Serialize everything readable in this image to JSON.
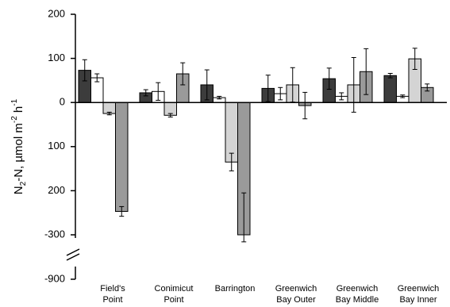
{
  "chart_data": {
    "type": "bar",
    "y_label": {
      "parts": [
        "N",
        "2",
        "-N, µmol m",
        "-2",
        " h",
        "-1"
      ]
    },
    "categories": [
      [
        "Field's",
        "Point"
      ],
      [
        "Conimicut",
        "Point"
      ],
      [
        "Barrington"
      ],
      [
        "Greenwich",
        "Bay Outer"
      ],
      [
        "Greenwich",
        "Bay Middle"
      ],
      [
        "Greenwich",
        "Bay Inner"
      ]
    ],
    "series": [
      {
        "color": "#3c3c3c",
        "values": [
          73,
          22,
          40,
          32,
          54,
          61
        ],
        "errors": [
          24,
          7,
          34,
          30,
          24,
          5
        ]
      },
      {
        "color": "#ffffff",
        "values": [
          56,
          25,
          11,
          20,
          14,
          14
        ],
        "errors": [
          9,
          20,
          3,
          14,
          8,
          3
        ]
      },
      {
        "color": "#d4d4d4",
        "values": [
          -25,
          -29,
          -135,
          40,
          40,
          99
        ],
        "errors": [
          3,
          4,
          20,
          39,
          62,
          24
        ]
      },
      {
        "color": "#9a9a9a",
        "values": [
          -247,
          65,
          -300,
          -7,
          70,
          34
        ],
        "errors": [
          11,
          25,
          95,
          30,
          52,
          8
        ]
      }
    ],
    "ylim": [
      -900,
      200
    ],
    "y_break": [
      -900,
      -300
    ],
    "yticks": [
      200,
      100,
      0,
      {
        "value": -100,
        "label": "100"
      },
      {
        "value": -200,
        "label": "200"
      },
      -300,
      -900
    ]
  }
}
